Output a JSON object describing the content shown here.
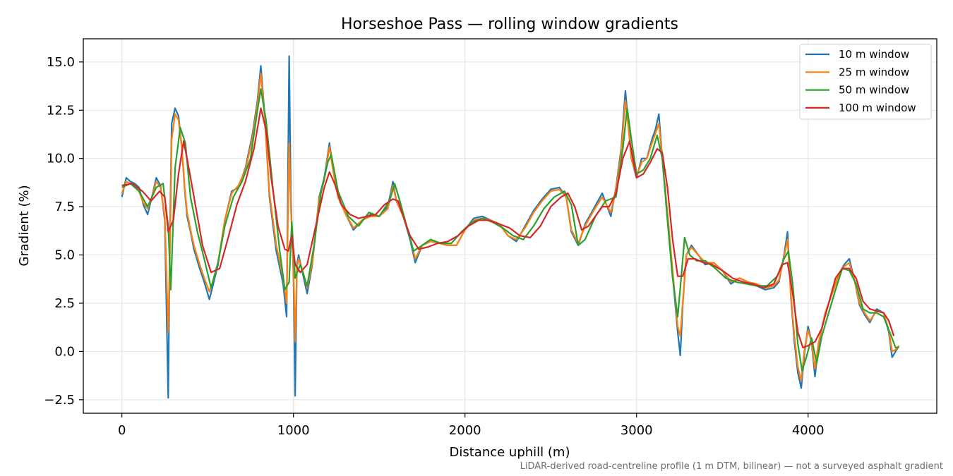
{
  "chart_data": {
    "type": "line",
    "title": "Horseshoe Pass — rolling window gradients",
    "xlabel": "Distance uphill (m)",
    "ylabel": "Gradient (%)",
    "xlim": [
      -225,
      4750
    ],
    "ylim": [
      -3.2,
      16.2
    ],
    "xticks": [
      0,
      1000,
      2000,
      3000,
      4000
    ],
    "yticks": [
      -2.5,
      0.0,
      2.5,
      5.0,
      7.5,
      10.0,
      12.5,
      15.0
    ],
    "ytick_labels": [
      "−2.5",
      "0.0",
      "2.5",
      "5.0",
      "7.5",
      "10.0",
      "12.5",
      "15.0"
    ],
    "grid": true,
    "legend_position": "top-right",
    "footnote": "LiDAR-derived road-centreline profile (1 m DTM, bilinear) — not a surveyed asphalt gradient",
    "series": [
      {
        "name": "10 m window",
        "color": "#1f77b4",
        "x": [
          0,
          25,
          50,
          75,
          100,
          125,
          150,
          175,
          200,
          225,
          250,
          270,
          280,
          290,
          310,
          330,
          350,
          365,
          380,
          400,
          420,
          450,
          480,
          510,
          530,
          560,
          600,
          640,
          680,
          720,
          760,
          790,
          810,
          830,
          860,
          900,
          940,
          960,
          975,
          985,
          1000,
          1010,
          1020,
          1030,
          1050,
          1080,
          1110,
          1150,
          1180,
          1210,
          1230,
          1260,
          1300,
          1350,
          1400,
          1450,
          1500,
          1550,
          1580,
          1600,
          1640,
          1680,
          1710,
          1750,
          1800,
          1850,
          1900,
          1950,
          2000,
          2050,
          2100,
          2150,
          2200,
          2250,
          2300,
          2350,
          2400,
          2450,
          2500,
          2550,
          2590,
          2620,
          2660,
          2700,
          2750,
          2800,
          2850,
          2880,
          2910,
          2935,
          2950,
          2970,
          3000,
          3030,
          3060,
          3090,
          3110,
          3130,
          3150,
          3180,
          3210,
          3240,
          3255,
          3270,
          3290,
          3320,
          3360,
          3400,
          3450,
          3500,
          3550,
          3600,
          3650,
          3700,
          3750,
          3800,
          3830,
          3860,
          3880,
          3900,
          3920,
          3940,
          3960,
          3980,
          4000,
          4020,
          4040,
          4060,
          4080,
          4100,
          4140,
          4180,
          4210,
          4240,
          4270,
          4300,
          4330,
          4360,
          4400,
          4440,
          4470,
          4490,
          4510,
          4530
        ],
        "y": [
          8.0,
          9.0,
          8.8,
          8.7,
          8.5,
          7.6,
          7.1,
          8.0,
          9.0,
          8.6,
          6.8,
          -2.4,
          6.0,
          11.8,
          12.6,
          12.2,
          10.5,
          8.5,
          7.0,
          6.2,
          5.3,
          4.4,
          3.6,
          2.7,
          3.4,
          4.5,
          6.8,
          8.3,
          8.5,
          9.5,
          11.2,
          13.0,
          14.8,
          12.5,
          8.0,
          5.2,
          3.5,
          1.8,
          15.3,
          8.0,
          4.0,
          -2.3,
          4.5,
          5.0,
          4.2,
          3.0,
          4.5,
          8.0,
          9.0,
          10.8,
          9.5,
          8.0,
          7.2,
          6.3,
          6.8,
          7.1,
          7.0,
          7.5,
          8.8,
          7.8,
          7.0,
          5.8,
          4.6,
          5.5,
          5.8,
          5.6,
          5.5,
          5.5,
          6.3,
          6.9,
          7.0,
          6.8,
          6.6,
          6.0,
          5.7,
          6.5,
          7.3,
          7.9,
          8.4,
          8.5,
          8.0,
          6.2,
          5.5,
          6.6,
          7.4,
          8.2,
          7.0,
          8.5,
          10.5,
          13.5,
          12.0,
          10.0,
          9.0,
          10.0,
          10.0,
          11.0,
          11.5,
          12.3,
          10.0,
          7.0,
          4.0,
          1.0,
          -0.2,
          2.5,
          5.0,
          5.5,
          5.0,
          4.5,
          4.6,
          4.2,
          3.5,
          3.8,
          3.6,
          3.4,
          3.2,
          3.3,
          3.6,
          5.0,
          6.2,
          2.8,
          0.5,
          -1.1,
          -1.9,
          0.0,
          1.3,
          0.5,
          -1.3,
          0.3,
          1.2,
          2.0,
          3.0,
          4.0,
          4.5,
          4.8,
          3.7,
          2.4,
          1.9,
          1.5,
          2.2,
          2.0,
          1.0,
          -0.3,
          0.0,
          0.3
        ]
      },
      {
        "name": "25 m window",
        "color": "#ff7f0e",
        "x": [
          0,
          25,
          50,
          75,
          100,
          125,
          150,
          175,
          200,
          225,
          250,
          270,
          280,
          290,
          310,
          330,
          350,
          365,
          380,
          400,
          420,
          450,
          480,
          510,
          530,
          560,
          600,
          640,
          680,
          720,
          760,
          790,
          810,
          830,
          860,
          900,
          940,
          960,
          975,
          985,
          1000,
          1010,
          1020,
          1030,
          1050,
          1080,
          1110,
          1150,
          1180,
          1210,
          1230,
          1260,
          1300,
          1350,
          1400,
          1450,
          1500,
          1550,
          1580,
          1600,
          1640,
          1680,
          1710,
          1750,
          1800,
          1850,
          1900,
          1950,
          2000,
          2050,
          2100,
          2150,
          2200,
          2250,
          2300,
          2350,
          2400,
          2450,
          2500,
          2550,
          2590,
          2620,
          2660,
          2700,
          2750,
          2800,
          2850,
          2880,
          2910,
          2935,
          2950,
          2970,
          3000,
          3030,
          3060,
          3090,
          3110,
          3130,
          3150,
          3180,
          3210,
          3240,
          3255,
          3270,
          3290,
          3320,
          3360,
          3400,
          3450,
          3500,
          3550,
          3600,
          3650,
          3700,
          3750,
          3800,
          3830,
          3860,
          3880,
          3900,
          3920,
          3940,
          3960,
          3980,
          4000,
          4020,
          4040,
          4060,
          4080,
          4100,
          4140,
          4180,
          4210,
          4240,
          4270,
          4300,
          4330,
          4360,
          4400,
          4440,
          4470,
          4490,
          4510,
          4530
        ],
        "y": [
          8.2,
          8.8,
          8.7,
          8.6,
          8.3,
          7.7,
          7.4,
          8.0,
          8.8,
          8.5,
          7.0,
          1.0,
          5.0,
          11.0,
          12.3,
          12.0,
          10.5,
          8.6,
          7.2,
          6.3,
          5.5,
          4.6,
          3.8,
          3.1,
          3.6,
          4.6,
          6.8,
          8.2,
          8.6,
          9.4,
          11.0,
          12.8,
          14.4,
          12.4,
          8.2,
          5.5,
          3.8,
          2.5,
          10.8,
          7.5,
          4.3,
          0.5,
          4.3,
          4.8,
          4.3,
          3.3,
          4.6,
          7.9,
          8.9,
          10.6,
          9.4,
          8.0,
          7.2,
          6.4,
          6.8,
          7.0,
          7.0,
          7.4,
          8.6,
          7.8,
          7.0,
          5.9,
          4.8,
          5.5,
          5.7,
          5.6,
          5.5,
          5.5,
          6.3,
          6.8,
          6.9,
          6.8,
          6.6,
          6.0,
          5.8,
          6.4,
          7.2,
          7.8,
          8.3,
          8.4,
          8.0,
          6.3,
          5.6,
          6.5,
          7.3,
          8.0,
          7.2,
          8.4,
          10.3,
          13.0,
          11.8,
          10.0,
          9.1,
          9.8,
          10.0,
          10.8,
          11.3,
          11.8,
          10.0,
          7.2,
          4.2,
          1.3,
          0.8,
          2.6,
          5.0,
          5.4,
          5.0,
          4.6,
          4.6,
          4.2,
          3.6,
          3.8,
          3.6,
          3.5,
          3.3,
          3.4,
          3.7,
          4.9,
          5.8,
          2.9,
          0.8,
          -0.8,
          -1.5,
          0.2,
          1.1,
          0.5,
          -0.9,
          0.4,
          1.2,
          2.0,
          3.0,
          4.0,
          4.4,
          4.6,
          3.7,
          2.5,
          2.0,
          1.6,
          2.1,
          2.0,
          1.1,
          0.0,
          0.1,
          0.3
        ]
      },
      {
        "name": "50 m window",
        "color": "#2ca02c",
        "x": [
          0,
          50,
          100,
          150,
          200,
          240,
          270,
          285,
          310,
          340,
          370,
          400,
          440,
          480,
          520,
          560,
          600,
          650,
          700,
          750,
          790,
          810,
          840,
          880,
          920,
          950,
          975,
          990,
          1010,
          1040,
          1080,
          1120,
          1160,
          1200,
          1220,
          1260,
          1320,
          1380,
          1440,
          1500,
          1560,
          1590,
          1620,
          1660,
          1700,
          1750,
          1800,
          1860,
          1920,
          1980,
          2040,
          2100,
          2160,
          2220,
          2280,
          2340,
          2400,
          2460,
          2520,
          2580,
          2620,
          2660,
          2700,
          2760,
          2820,
          2880,
          2920,
          2945,
          2970,
          3000,
          3040,
          3080,
          3120,
          3150,
          3180,
          3210,
          3240,
          3260,
          3280,
          3310,
          3350,
          3400,
          3460,
          3520,
          3580,
          3640,
          3700,
          3760,
          3820,
          3860,
          3885,
          3910,
          3940,
          3965,
          3990,
          4020,
          4050,
          4080,
          4120,
          4160,
          4200,
          4240,
          4280,
          4320,
          4360,
          4400,
          4440,
          4480,
          4510,
          4530
        ],
        "y": [
          8.5,
          8.7,
          8.3,
          7.5,
          8.5,
          8.7,
          6.5,
          3.2,
          9.5,
          11.6,
          10.8,
          8.0,
          6.2,
          4.8,
          3.3,
          4.6,
          6.5,
          8.0,
          8.8,
          10.0,
          12.5,
          13.6,
          12.0,
          8.5,
          5.2,
          3.2,
          3.6,
          6.7,
          3.8,
          4.5,
          3.4,
          5.5,
          8.2,
          9.8,
          10.2,
          8.3,
          7.0,
          6.5,
          7.2,
          7.0,
          7.8,
          8.7,
          7.8,
          6.5,
          5.2,
          5.5,
          5.8,
          5.6,
          5.6,
          6.2,
          6.7,
          6.9,
          6.7,
          6.4,
          6.0,
          5.8,
          6.5,
          7.4,
          8.0,
          8.3,
          7.6,
          5.5,
          5.8,
          7.0,
          7.8,
          8.0,
          10.5,
          12.6,
          11.0,
          9.2,
          9.4,
          10.0,
          11.2,
          10.0,
          6.8,
          3.8,
          1.8,
          3.8,
          5.9,
          5.0,
          4.7,
          4.7,
          4.3,
          3.8,
          3.6,
          3.5,
          3.4,
          3.4,
          3.9,
          4.8,
          5.2,
          3.5,
          0.4,
          -1.0,
          -0.3,
          0.7,
          -0.6,
          0.8,
          2.0,
          3.2,
          4.3,
          4.2,
          3.5,
          2.2,
          2.0,
          2.0,
          1.8,
          0.9,
          0.2,
          0.2
        ]
      },
      {
        "name": "100 m window",
        "color": "#d62728",
        "x": [
          0,
          60,
          120,
          170,
          220,
          250,
          270,
          300,
          330,
          360,
          390,
          430,
          470,
          520,
          570,
          620,
          670,
          720,
          770,
          810,
          840,
          870,
          910,
          950,
          970,
          990,
          1010,
          1040,
          1080,
          1130,
          1180,
          1210,
          1240,
          1280,
          1330,
          1380,
          1430,
          1480,
          1530,
          1580,
          1610,
          1640,
          1680,
          1730,
          1780,
          1840,
          1900,
          1960,
          2020,
          2080,
          2140,
          2200,
          2260,
          2320,
          2380,
          2440,
          2500,
          2560,
          2600,
          2640,
          2680,
          2720,
          2760,
          2800,
          2840,
          2880,
          2920,
          2960,
          3000,
          3040,
          3080,
          3120,
          3150,
          3180,
          3210,
          3240,
          3270,
          3300,
          3340,
          3390,
          3440,
          3500,
          3560,
          3620,
          3680,
          3740,
          3800,
          3850,
          3880,
          3910,
          3940,
          3970,
          4000,
          4040,
          4080,
          4120,
          4160,
          4200,
          4240,
          4280,
          4320,
          4360,
          4400,
          4440,
          4470,
          4500
        ],
        "y": [
          8.6,
          8.7,
          8.3,
          7.8,
          8.3,
          8.0,
          6.2,
          6.8,
          9.2,
          10.9,
          9.5,
          7.5,
          5.5,
          4.1,
          4.3,
          5.9,
          7.6,
          8.8,
          10.5,
          12.6,
          11.5,
          9.0,
          6.5,
          5.3,
          5.2,
          6.0,
          4.5,
          4.1,
          4.5,
          6.5,
          8.5,
          9.3,
          8.7,
          7.6,
          7.1,
          6.9,
          7.0,
          7.1,
          7.6,
          7.9,
          7.8,
          7.0,
          6.0,
          5.3,
          5.4,
          5.6,
          5.7,
          6.0,
          6.5,
          6.8,
          6.8,
          6.6,
          6.4,
          6.0,
          5.9,
          6.5,
          7.5,
          8.0,
          8.2,
          7.5,
          6.3,
          6.5,
          7.0,
          7.5,
          7.5,
          8.2,
          10.0,
          10.9,
          9.0,
          9.2,
          9.8,
          10.5,
          10.3,
          8.5,
          5.8,
          3.9,
          3.9,
          4.8,
          4.8,
          4.6,
          4.5,
          4.2,
          3.8,
          3.6,
          3.5,
          3.3,
          3.5,
          4.5,
          4.6,
          3.0,
          1.0,
          0.2,
          0.3,
          0.5,
          1.2,
          2.5,
          3.8,
          4.3,
          4.3,
          3.8,
          2.6,
          2.2,
          2.1,
          2.0,
          1.6,
          0.8
        ]
      }
    ]
  }
}
